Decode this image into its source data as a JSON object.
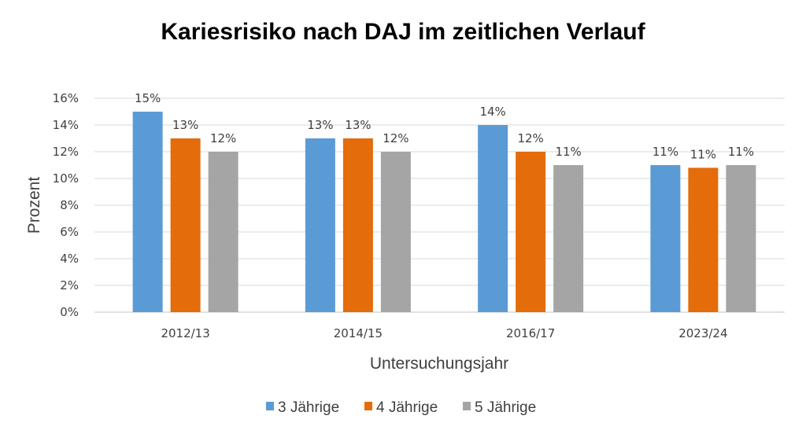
{
  "chart_data": {
    "type": "bar",
    "title": "Kariesrisiko nach DAJ im zeitlichen Verlauf",
    "xlabel": "Untersuchungsjahr",
    "ylabel": "Prozent",
    "categories": [
      "2012/13",
      "2014/15",
      "2016/17",
      "2023/24"
    ],
    "series": [
      {
        "name": "3 Jährige",
        "color": "#5B9BD5",
        "values": [
          15,
          13,
          14,
          11
        ],
        "labels": [
          "15%",
          "13%",
          "14%",
          "11%"
        ]
      },
      {
        "name": "4 Jährige",
        "color": "#E46C0A",
        "values": [
          13,
          13,
          12,
          10.8
        ],
        "labels": [
          "13%",
          "13%",
          "12%",
          "11%"
        ]
      },
      {
        "name": "5 Jährige",
        "color": "#A5A5A5",
        "values": [
          12,
          12,
          11,
          11
        ],
        "labels": [
          "12%",
          "12%",
          "11%",
          "11%"
        ]
      }
    ],
    "ylim": [
      0,
      16
    ],
    "yticks": [
      0,
      2,
      4,
      6,
      8,
      10,
      12,
      14,
      16
    ],
    "ytick_labels": [
      "0%",
      "2%",
      "4%",
      "6%",
      "8%",
      "10%",
      "12%",
      "14%",
      "16%"
    ],
    "grid": true,
    "gridline_color": "#D9D9D9",
    "legend_position": "bottom"
  }
}
